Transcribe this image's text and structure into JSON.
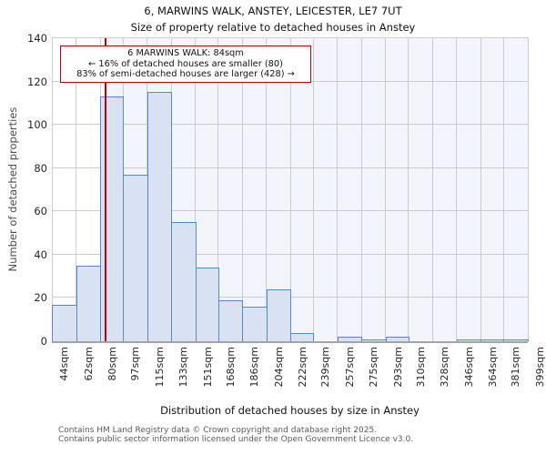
{
  "title": "6, MARWINS WALK, ANSTEY, LEICESTER, LE7 7UT",
  "subtitle": "Size of property relative to detached houses in Anstey",
  "annotation": {
    "line1": "6 MARWINS WALK: 84sqm",
    "line2": "← 16% of detached houses are smaller (80)",
    "line3": "83% of semi-detached houses are larger (428) →"
  },
  "chart_data": {
    "type": "bar",
    "title": "6, MARWINS WALK, ANSTEY, LEICESTER, LE7 7UT — Size of property relative to detached houses in Anstey",
    "xlabel": "Distribution of detached houses by size in Anstey",
    "ylabel": "Number of detached properties",
    "bin_edges_sqm": [
      44,
      62,
      80,
      97,
      115,
      133,
      151,
      168,
      186,
      204,
      222,
      239,
      257,
      275,
      293,
      310,
      328,
      346,
      364,
      381,
      399
    ],
    "x_tick_labels": [
      "44sqm",
      "62sqm",
      "80sqm",
      "97sqm",
      "115sqm",
      "133sqm",
      "151sqm",
      "168sqm",
      "186sqm",
      "204sqm",
      "222sqm",
      "239sqm",
      "257sqm",
      "275sqm",
      "293sqm",
      "310sqm",
      "328sqm",
      "346sqm",
      "364sqm",
      "381sqm",
      "399sqm"
    ],
    "values": [
      17,
      35,
      113,
      77,
      115,
      55,
      34,
      19,
      16,
      24,
      4,
      0,
      2,
      1,
      2,
      0,
      0,
      1,
      1,
      1
    ],
    "y_ticks": [
      0,
      20,
      40,
      60,
      80,
      100,
      120,
      140
    ],
    "ylim": [
      0,
      140
    ],
    "marker_value_sqm": 84,
    "shaded_region_sqm": [
      84,
      399
    ],
    "grid": true,
    "legend": "none"
  },
  "footer": {
    "line1": "Contains HM Land Registry data © Crown copyright and database right 2025.",
    "line2": "Contains public sector information licensed under the Open Government Licence v3.0."
  },
  "colors": {
    "bar_fill": "#d9e2f3",
    "bar_border": "#5b87c5",
    "marker": "#bb0000",
    "shade": "#f2f5fb",
    "grid": "#cccccc",
    "axis_line": "#a3a3a8",
    "footer_text": "#58595b"
  }
}
